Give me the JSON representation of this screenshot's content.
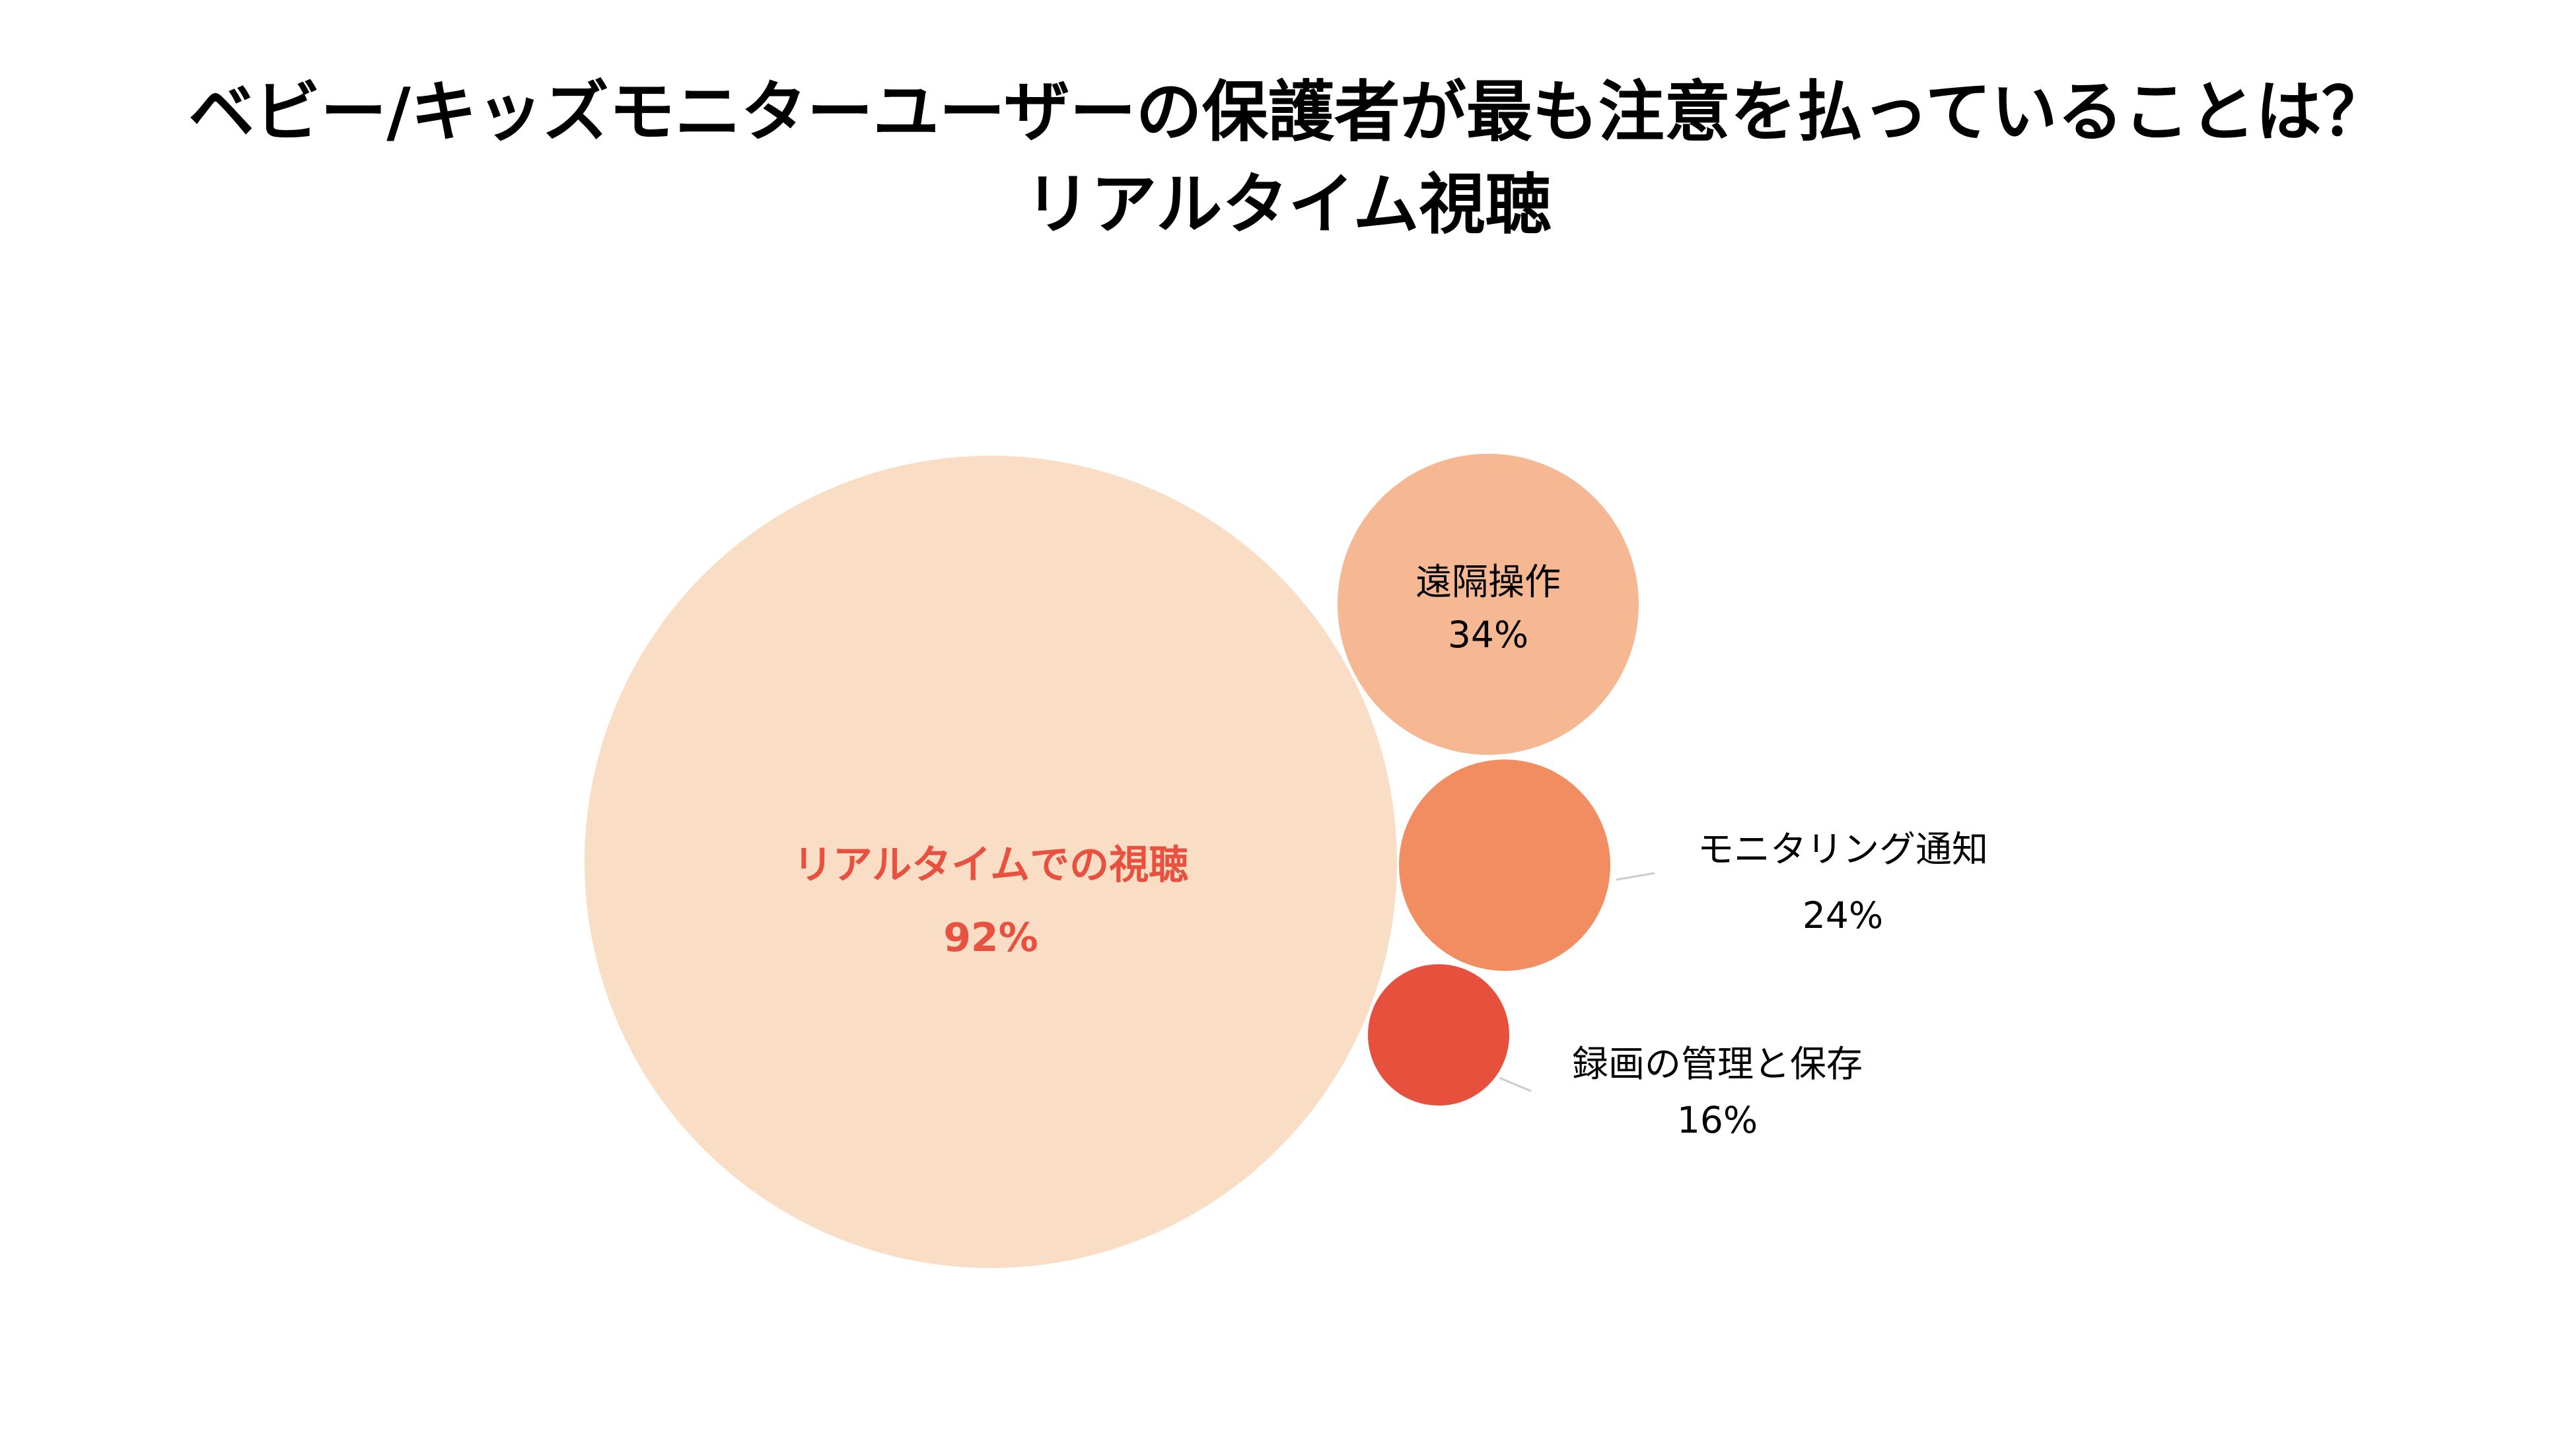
{
  "title": {
    "line1": "ベビー/キッズモニターユーザーの保護者が最も注意を払っていることは？",
    "line2": "リアルタイム視聴"
  },
  "chart_data": {
    "type": "bubble",
    "unit": "%",
    "series": [
      {
        "label": "リアルタイムでの視聴",
        "value": 92,
        "display": "92%",
        "color": "#F9DDC5",
        "text_color": "#E8513F",
        "bold": true
      },
      {
        "label": "遠隔操作",
        "value": 34,
        "display": "34%",
        "color": "#F6B892",
        "text_color": "#000000",
        "bold": false
      },
      {
        "label": "モニタリング通知",
        "value": 24,
        "display": "24%",
        "color": "#F28D61",
        "text_color": "#000000",
        "bold": false
      },
      {
        "label": "録画の管理と保存",
        "value": 16,
        "display": "16%",
        "color": "#E8503E",
        "text_color": "#000000",
        "bold": false
      }
    ],
    "leader_line_color": "#CCCCCC"
  }
}
